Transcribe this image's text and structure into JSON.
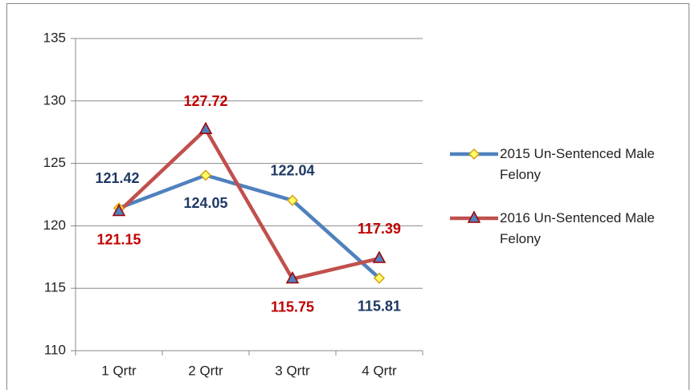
{
  "chart_data": {
    "type": "line",
    "categories": [
      "1 Qrtr",
      "2 Qrtr",
      "3 Qrtr",
      "4 Qrtr"
    ],
    "series": [
      {
        "name": "2015 Un-Sentenced Male Felony",
        "color": "#4f81bd",
        "label_color": "#1f3864",
        "marker": "diamond",
        "marker_color": "#ffff66",
        "values": [
          121.42,
          124.05,
          122.04,
          115.81
        ]
      },
      {
        "name": "2016 Un-Sentenced Male Felony",
        "color": "#c0504d",
        "label_color": "#c00000",
        "marker": "triangle",
        "marker_color": "#4f81bd",
        "values": [
          121.15,
          127.72,
          115.75,
          117.39
        ]
      }
    ],
    "ylim": [
      110,
      135
    ],
    "yticks": [
      110,
      115,
      120,
      125,
      130,
      135
    ],
    "grid": true,
    "legend": "right"
  }
}
